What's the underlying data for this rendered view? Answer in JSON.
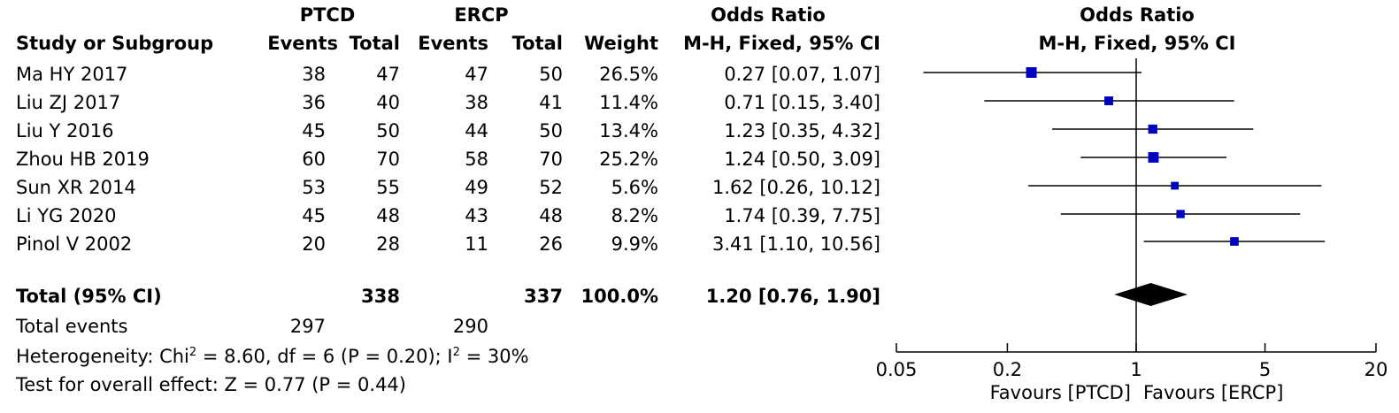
{
  "headers": {
    "group1": "PTCD",
    "group2": "ERCP",
    "study": "Study or Subgroup",
    "events1": "Events",
    "total1": "Total",
    "events2": "Events",
    "total2": "Total",
    "weight": "Weight",
    "or_title": "Odds Ratio",
    "or_method": "M-H, Fixed, 95% CI",
    "plot_title": "Odds Ratio",
    "plot_method": "M-H, Fixed, 95% CI"
  },
  "studies": [
    {
      "name": "Ma HY 2017",
      "e1": "38",
      "t1": "47",
      "e2": "47",
      "t2": "50",
      "weight": "26.5%",
      "ci_text": "0.27 [0.07, 1.07]"
    },
    {
      "name": "Liu ZJ 2017",
      "e1": "36",
      "t1": "40",
      "e2": "38",
      "t2": "41",
      "weight": "11.4%",
      "ci_text": "0.71 [0.15, 3.40]"
    },
    {
      "name": "Liu Y 2016",
      "e1": "45",
      "t1": "50",
      "e2": "44",
      "t2": "50",
      "weight": "13.4%",
      "ci_text": "1.23 [0.35, 4.32]"
    },
    {
      "name": "Zhou HB 2019",
      "e1": "60",
      "t1": "70",
      "e2": "58",
      "t2": "70",
      "weight": "25.2%",
      "ci_text": "1.24 [0.50, 3.09]"
    },
    {
      "name": "Sun XR 2014",
      "e1": "53",
      "t1": "55",
      "e2": "49",
      "t2": "52",
      "weight": "5.6%",
      "ci_text": "1.62 [0.26, 10.12]"
    },
    {
      "name": "Li YG 2020",
      "e1": "45",
      "t1": "48",
      "e2": "43",
      "t2": "48",
      "weight": "8.2%",
      "ci_text": "1.74 [0.39, 7.75]"
    },
    {
      "name": "Pinol V 2002",
      "e1": "20",
      "t1": "28",
      "e2": "11",
      "t2": "26",
      "weight": "9.9%",
      "ci_text": "3.41 [1.10, 10.56]"
    }
  ],
  "total": {
    "label": "Total (95% CI)",
    "t1": "338",
    "t2": "337",
    "weight": "100.0%",
    "ci_text": "1.20 [0.76, 1.90]"
  },
  "total_events": {
    "label": "Total events",
    "e1": "297",
    "e2": "290"
  },
  "heterogeneity": {
    "prefix": "Heterogeneity: Chi",
    "sup1": "2",
    "middle": " = 8.60, df = 6 (P = 0.20); I",
    "sup2": "2",
    "suffix": " = 30%"
  },
  "overall_effect": "Test for overall effect: Z = 0.77 (P = 0.44)",
  "axis": {
    "ticks": [
      "0.05",
      "0.2",
      "1",
      "5",
      "20"
    ],
    "favours_left": "Favours [PTCD]",
    "favours_right": "Favours [ERCP]"
  },
  "colors": {
    "marker": "#0000c0",
    "line": "#000000"
  },
  "chart_data": {
    "type": "forest",
    "x_scale": "log",
    "xlim": [
      0.05,
      20
    ],
    "xticks": [
      0.05,
      0.2,
      1,
      5,
      20
    ],
    "reference": 1,
    "studies": [
      {
        "name": "Ma HY 2017",
        "or": 0.27,
        "lower": 0.07,
        "upper": 1.07,
        "weight": 26.5
      },
      {
        "name": "Liu ZJ 2017",
        "or": 0.71,
        "lower": 0.15,
        "upper": 3.4,
        "weight": 11.4
      },
      {
        "name": "Liu Y 2016",
        "or": 1.23,
        "lower": 0.35,
        "upper": 4.32,
        "weight": 13.4
      },
      {
        "name": "Zhou HB 2019",
        "or": 1.24,
        "lower": 0.5,
        "upper": 3.09,
        "weight": 25.2
      },
      {
        "name": "Sun XR 2014",
        "or": 1.62,
        "lower": 0.26,
        "upper": 10.12,
        "weight": 5.6
      },
      {
        "name": "Li YG 2020",
        "or": 1.74,
        "lower": 0.39,
        "upper": 7.75,
        "weight": 8.2
      },
      {
        "name": "Pinol V 2002",
        "or": 3.41,
        "lower": 1.1,
        "upper": 10.56,
        "weight": 9.9
      }
    ],
    "pooled": {
      "or": 1.2,
      "lower": 0.76,
      "upper": 1.9
    }
  }
}
